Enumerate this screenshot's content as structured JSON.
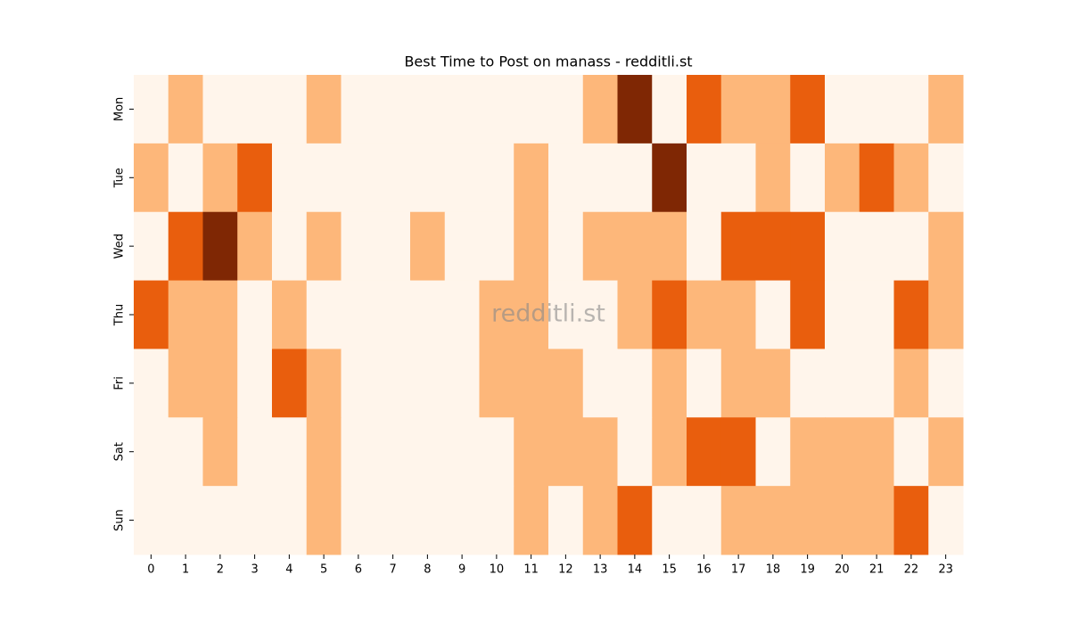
{
  "chart_data": {
    "type": "heatmap",
    "title": "Best Time to Post on manass - redditli.st",
    "watermark": "redditli.st",
    "columns": [
      0,
      1,
      2,
      3,
      4,
      5,
      6,
      7,
      8,
      9,
      10,
      11,
      12,
      13,
      14,
      15,
      16,
      17,
      18,
      19,
      20,
      21,
      22,
      23
    ],
    "rows": [
      "Mon",
      "Tue",
      "Wed",
      "Thu",
      "Fri",
      "Sat",
      "Sun"
    ],
    "colors": [
      "#fff5eb",
      "#fdb77a",
      "#e95e0d",
      "#7f2704"
    ],
    "values": [
      [
        0,
        1,
        0,
        0,
        0,
        1,
        0,
        0,
        0,
        0,
        0,
        0,
        0,
        1,
        3,
        0,
        2,
        1,
        1,
        2,
        0,
        0,
        0,
        1
      ],
      [
        1,
        0,
        1,
        2,
        0,
        0,
        0,
        0,
        0,
        0,
        0,
        1,
        0,
        0,
        0,
        3,
        0,
        0,
        1,
        0,
        1,
        2,
        1,
        0
      ],
      [
        0,
        2,
        3,
        1,
        0,
        1,
        0,
        0,
        1,
        0,
        0,
        1,
        0,
        1,
        1,
        1,
        0,
        2,
        2,
        2,
        0,
        0,
        0,
        1
      ],
      [
        2,
        1,
        1,
        0,
        1,
        0,
        0,
        0,
        0,
        0,
        1,
        1,
        0,
        0,
        1,
        2,
        1,
        1,
        0,
        2,
        0,
        0,
        2,
        1
      ],
      [
        0,
        1,
        1,
        0,
        2,
        1,
        0,
        0,
        0,
        0,
        1,
        1,
        1,
        0,
        0,
        1,
        0,
        1,
        1,
        0,
        0,
        0,
        1,
        0
      ],
      [
        0,
        0,
        1,
        0,
        0,
        1,
        0,
        0,
        0,
        0,
        0,
        1,
        1,
        1,
        0,
        1,
        2,
        2,
        0,
        1,
        1,
        1,
        0,
        1
      ],
      [
        0,
        0,
        0,
        0,
        0,
        1,
        0,
        0,
        0,
        0,
        0,
        1,
        0,
        1,
        2,
        0,
        0,
        1,
        1,
        1,
        1,
        1,
        2,
        0
      ]
    ]
  }
}
